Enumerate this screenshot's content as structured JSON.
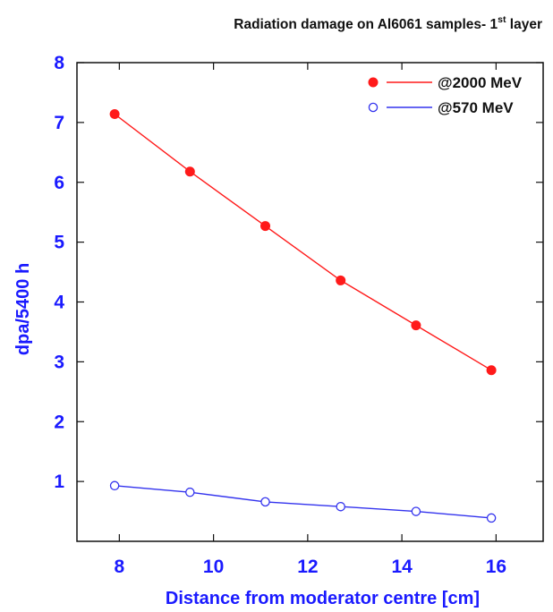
{
  "chart_data": {
    "type": "line",
    "title": "Radiation damage on Al6061 samples- 1",
    "title_superscript": "st",
    "title_suffix": " layer",
    "xlabel": "Distance from moderator centre [cm]",
    "ylabel": "dpa/5400 h",
    "xlim": [
      7.1,
      17.0
    ],
    "ylim": [
      0.0,
      8.0
    ],
    "x_ticks": [
      8,
      10,
      12,
      14,
      16
    ],
    "y_ticks": [
      1,
      2,
      3,
      4,
      5,
      6,
      7,
      8
    ],
    "grid": false,
    "legend_position": "top-right",
    "axis_label_color": "#1a1aff",
    "series": [
      {
        "name": "@2000 MeV",
        "color": "#ff1a1a",
        "marker": "filled-circle",
        "x": [
          7.9,
          9.5,
          11.1,
          12.7,
          14.3,
          15.9
        ],
        "y": [
          7.14,
          6.18,
          5.27,
          4.36,
          3.61,
          2.86
        ]
      },
      {
        "name": "@570 MeV",
        "color": "#3333ee",
        "marker": "open-circle",
        "x": [
          7.9,
          9.5,
          11.1,
          12.7,
          14.3,
          15.9
        ],
        "y": [
          0.93,
          0.82,
          0.66,
          0.58,
          0.5,
          0.39
        ]
      }
    ]
  }
}
